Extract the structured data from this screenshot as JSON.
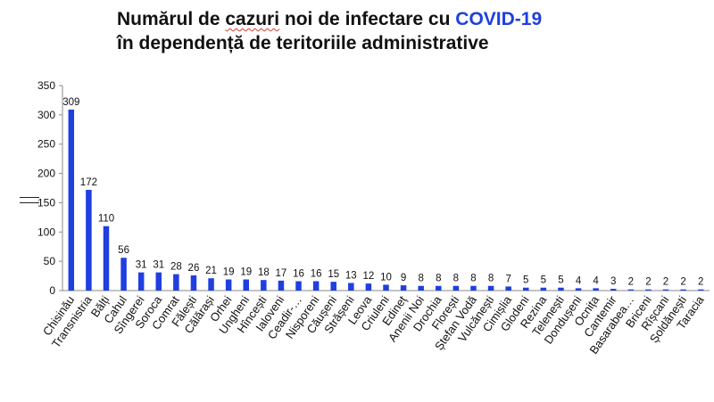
{
  "title": {
    "line1_before": "Numărul de ",
    "line1_squiggle": "cazuri",
    "line1_middle": " noi de infectare cu ",
    "line1_accent": "COVID-19",
    "line2": "în dependență de teritoriile administrative"
  },
  "colors": {
    "bar": "#1f3fe0",
    "accent": "#1f3fe0",
    "axis": "#888888"
  },
  "chart_data": {
    "type": "bar",
    "title": "Numărul de cazuri noi de infectare cu COVID-19 în dependență de teritoriile administrative",
    "xlabel": "",
    "ylabel": "",
    "ylim": [
      0,
      350
    ],
    "yticks": [
      0,
      50,
      100,
      150,
      200,
      250,
      300,
      350
    ],
    "grid": false,
    "legend": "none",
    "categories": [
      "Chisinău",
      "Transnistria",
      "Bălți",
      "Cahul",
      "Sîngerei",
      "Soroca",
      "Comrat",
      "Fălești",
      "Călărași",
      "Orhei",
      "Ungheni",
      "Hîncești",
      "Ialoveni",
      "Ceadir-…",
      "Nisporeni",
      "Căușeni",
      "Strășeni",
      "Leova",
      "Criuleni",
      "Edineț",
      "Anenii Noi",
      "Drochia",
      "Florești",
      "Ștefan Vodă",
      "Vulcănești",
      "Cimișlia",
      "Glodeni",
      "Rezina",
      "Telenești",
      "Dondușeni",
      "Ocnița",
      "Cantemir",
      "Basarabea…",
      "Briceni",
      "Rîșcani",
      "Șoldănești",
      "Taracia"
    ],
    "values": [
      309,
      172,
      110,
      56,
      31,
      31,
      28,
      26,
      21,
      19,
      19,
      18,
      17,
      16,
      16,
      15,
      13,
      12,
      10,
      9,
      8,
      8,
      8,
      8,
      8,
      7,
      5,
      5,
      5,
      4,
      4,
      3,
      2,
      2,
      2,
      2,
      2
    ]
  }
}
